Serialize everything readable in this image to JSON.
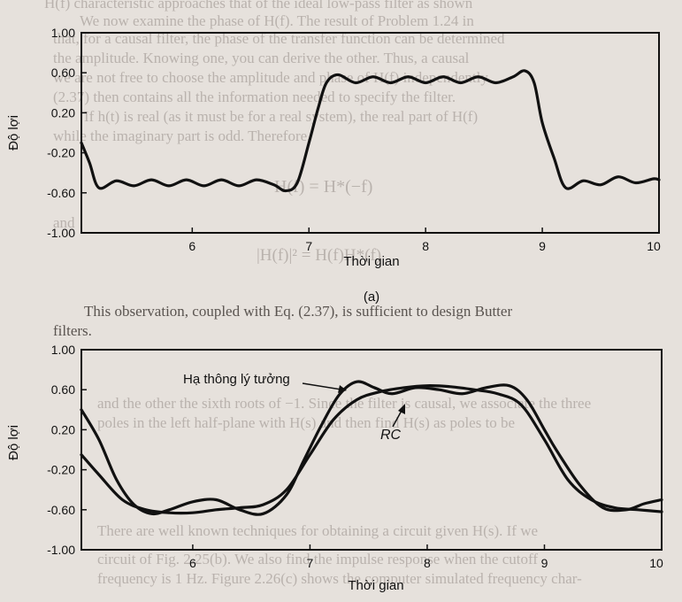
{
  "chart_data": [
    {
      "type": "line",
      "xlabel": "Thời gian",
      "ylabel": "Độ lợi",
      "xlim": [
        5.05,
        10
      ],
      "ylim": [
        -1.0,
        1.0
      ],
      "xticks": [
        6,
        7,
        8,
        9,
        10
      ],
      "yticks": [
        "1.00",
        "0.60",
        "0.20",
        "-0.20",
        "-0.60",
        "-1.00"
      ],
      "caption": "(a)",
      "series": [
        {
          "x": [
            5.05,
            5.12,
            5.2,
            5.35,
            5.5,
            5.65,
            5.8,
            5.95,
            6.1,
            6.25,
            6.4,
            6.55,
            6.7,
            6.8,
            6.9,
            7.0,
            7.08,
            7.15,
            7.25,
            7.4,
            7.55,
            7.7,
            7.85,
            8.0,
            8.15,
            8.3,
            8.45,
            8.6,
            8.75,
            8.85,
            8.93,
            9.0,
            9.1,
            9.2,
            9.35,
            9.5,
            9.65,
            9.8,
            9.95,
            10.0
          ],
          "y": [
            -0.1,
            -0.3,
            -0.55,
            -0.48,
            -0.53,
            -0.47,
            -0.53,
            -0.47,
            -0.53,
            -0.47,
            -0.53,
            -0.47,
            -0.52,
            -0.58,
            -0.5,
            -0.1,
            0.25,
            0.5,
            0.58,
            0.5,
            0.56,
            0.5,
            0.56,
            0.5,
            0.56,
            0.5,
            0.56,
            0.5,
            0.56,
            0.62,
            0.5,
            0.1,
            -0.25,
            -0.55,
            -0.48,
            -0.52,
            -0.44,
            -0.5,
            -0.46,
            -0.47
          ]
        }
      ]
    },
    {
      "type": "line",
      "xlabel": "Thời gian",
      "ylabel": "Độ lợi",
      "xlim": [
        5.05,
        10
      ],
      "ylim": [
        -1.0,
        1.0
      ],
      "xticks": [
        6,
        7,
        8,
        9,
        10
      ],
      "yticks": [
        "1.00",
        "0.60",
        "0.20",
        "-0.20",
        "-0.60",
        "-1.00"
      ],
      "annotations": [
        "Hạ thông lý tưởng",
        "RC"
      ],
      "series": [
        {
          "x": [
            5.05,
            5.2,
            5.35,
            5.5,
            5.65,
            5.8,
            6.0,
            6.2,
            6.4,
            6.6,
            6.8,
            6.95,
            7.1,
            7.25,
            7.4,
            7.55,
            7.7,
            7.9,
            8.1,
            8.3,
            8.5,
            8.7,
            8.85,
            9.0,
            9.1,
            9.3,
            9.5,
            9.7,
            9.85,
            10.0
          ],
          "y": [
            0.4,
            0.1,
            -0.3,
            -0.55,
            -0.64,
            -0.6,
            -0.52,
            -0.5,
            -0.6,
            -0.64,
            -0.45,
            -0.1,
            0.25,
            0.55,
            0.68,
            0.62,
            0.56,
            0.62,
            0.6,
            0.56,
            0.62,
            0.64,
            0.5,
            0.2,
            0.0,
            -0.35,
            -0.58,
            -0.6,
            -0.54,
            -0.5
          ]
        },
        {
          "x": [
            5.05,
            5.2,
            5.4,
            5.6,
            5.8,
            6.0,
            6.2,
            6.4,
            6.6,
            6.8,
            7.0,
            7.2,
            7.4,
            7.6,
            7.8,
            8.0,
            8.2,
            8.4,
            8.6,
            8.8,
            9.0,
            9.2,
            9.4,
            9.6,
            9.8,
            10.0
          ],
          "y": [
            -0.05,
            -0.25,
            -0.5,
            -0.6,
            -0.63,
            -0.63,
            -0.6,
            -0.58,
            -0.55,
            -0.4,
            -0.05,
            0.3,
            0.5,
            0.58,
            0.62,
            0.64,
            0.63,
            0.6,
            0.56,
            0.45,
            0.1,
            -0.3,
            -0.5,
            -0.58,
            -0.6,
            -0.62
          ]
        }
      ]
    }
  ],
  "bg_text": [
    "H(f) characteristic approaches that of the ideal low-pass filter as shown",
    "We now examine the phase of H(f). The result of Problem 1.24 in",
    "that, for a causal filter, the phase of the transfer function can be determined",
    "the amplitude. Knowing one, you can derive the other. Thus, a causal",
    "we are not free to choose the amplitude and phase of H(f) independently",
    "(2.37) then contains all the information needed to specify the filter.",
    "If h(t) is real (as it must be for a real system), the real part of H(f)",
    "while the imaginary part is odd. Therefore,",
    "H(f) = H*(−f)",
    "and",
    "|H(f)|² = H(f)H*(f)",
    "This observation, coupled with Eq. (2.37), is sufficient to design Butter",
    "filters.",
    "and the other the sixth roots of −1. Since the filter is causal, we associate the three",
    "poles in the left half-plane with H(s) and then find H(s) as poles to be",
    "There are well known techniques for obtaining a circuit given H(s). If we",
    "circuit of Fig. 2.25(b). We also find the impulse response when the cutoff",
    "frequency is 1 Hz. Figure 2.26(c) shows the computer simulated frequency char-"
  ]
}
